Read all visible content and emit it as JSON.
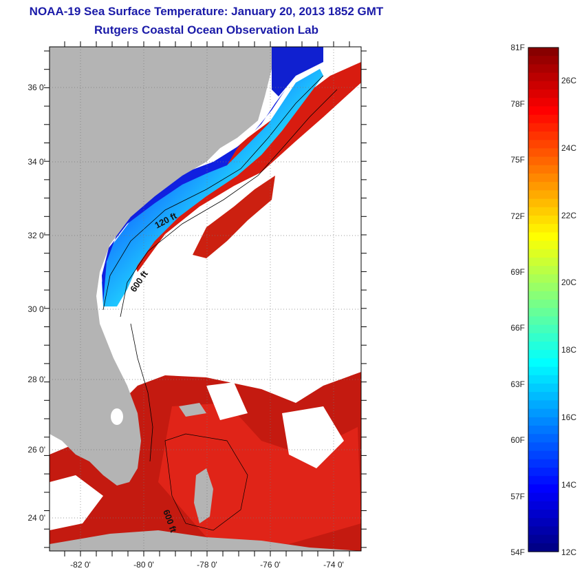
{
  "header": {
    "title": "NOAA-19 Sea Surface Temperature:  January 20, 2013 1852 GMT",
    "subtitle": "Rutgers Coastal Ocean Observation Lab"
  },
  "map": {
    "lat_ticks": [
      "36 0'",
      "34 0'",
      "32 0'",
      "30 0'",
      "28 0'",
      "26 0'",
      "24 0'"
    ],
    "lon_ticks": [
      "-82 0'",
      "-80 0'",
      "-78 0'",
      "-76 0'",
      "-74 0'"
    ],
    "contour_labels": [
      "120 ft",
      "600 ft",
      "600 ft"
    ]
  },
  "colorbar": {
    "f_labels": [
      "81F",
      "78F",
      "75F",
      "72F",
      "69F",
      "66F",
      "63F",
      "60F",
      "57F",
      "54F"
    ],
    "c_labels": [
      "26C",
      "24C",
      "22C",
      "20C",
      "18C",
      "16C",
      "14C",
      "12C"
    ],
    "colors": [
      "#00007f",
      "#0000ff",
      "#007fff",
      "#00ffff",
      "#7fff7f",
      "#ffff00",
      "#ff7f00",
      "#ff0000",
      "#7f0000"
    ]
  },
  "colors": {
    "land": "#b4b4b4",
    "no_data": "#ffffff",
    "gulf_stream": "#d81c10",
    "title_text": "#1a1aa8"
  }
}
